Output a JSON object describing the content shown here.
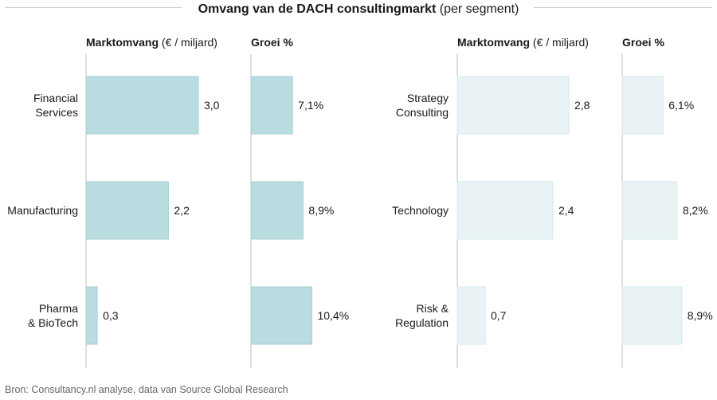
{
  "title": {
    "main": "Omvang van de DACH consultingmarkt",
    "sub": "(per segment)"
  },
  "source": "Bron: Consultancy.nl analyse, data van Source Global Research",
  "colors": {
    "left_fill": "#b8dce0",
    "left_stroke": "#a6cfd4",
    "right_fill": "#e9f3f5",
    "right_stroke": "#d3e8eb",
    "axis": "#bdbdbd",
    "text": "#1a1a1a"
  },
  "chart_data": [
    {
      "type": "bar",
      "orientation": "horizontal",
      "panel": "left",
      "categories": [
        "Financial\nServices",
        "Manufacturing",
        "Pharma\n& BioTech"
      ],
      "series": [
        {
          "name": "Marktomvang",
          "header_bold": "Marktomvang",
          "header_rest": "(€ / miljard)",
          "values": [
            3.0,
            2.2,
            0.3
          ],
          "labels": [
            "3,0",
            "2,2",
            "0,3"
          ]
        },
        {
          "name": "Groei %",
          "header_bold": "Groei %",
          "header_rest": "",
          "values": [
            7.1,
            8.9,
            10.4
          ],
          "labels": [
            "7,1%",
            "8,9%",
            "10,4%"
          ]
        }
      ]
    },
    {
      "type": "bar",
      "orientation": "horizontal",
      "panel": "right",
      "categories": [
        "Strategy\nConsulting",
        "Technology",
        "Risk &\nRegulation"
      ],
      "series": [
        {
          "name": "Marktomvang",
          "header_bold": "Marktomvang",
          "header_rest": "(€ / miljard)",
          "values": [
            2.8,
            2.4,
            0.7
          ],
          "labels": [
            "2,8",
            "2,4",
            "0,7"
          ]
        },
        {
          "name": "Groei %",
          "header_bold": "Groei %",
          "header_rest": "",
          "values": [
            6.1,
            8.2,
            8.9
          ],
          "labels": [
            "6,1%",
            "8,2%",
            "8,9%"
          ]
        }
      ]
    }
  ]
}
